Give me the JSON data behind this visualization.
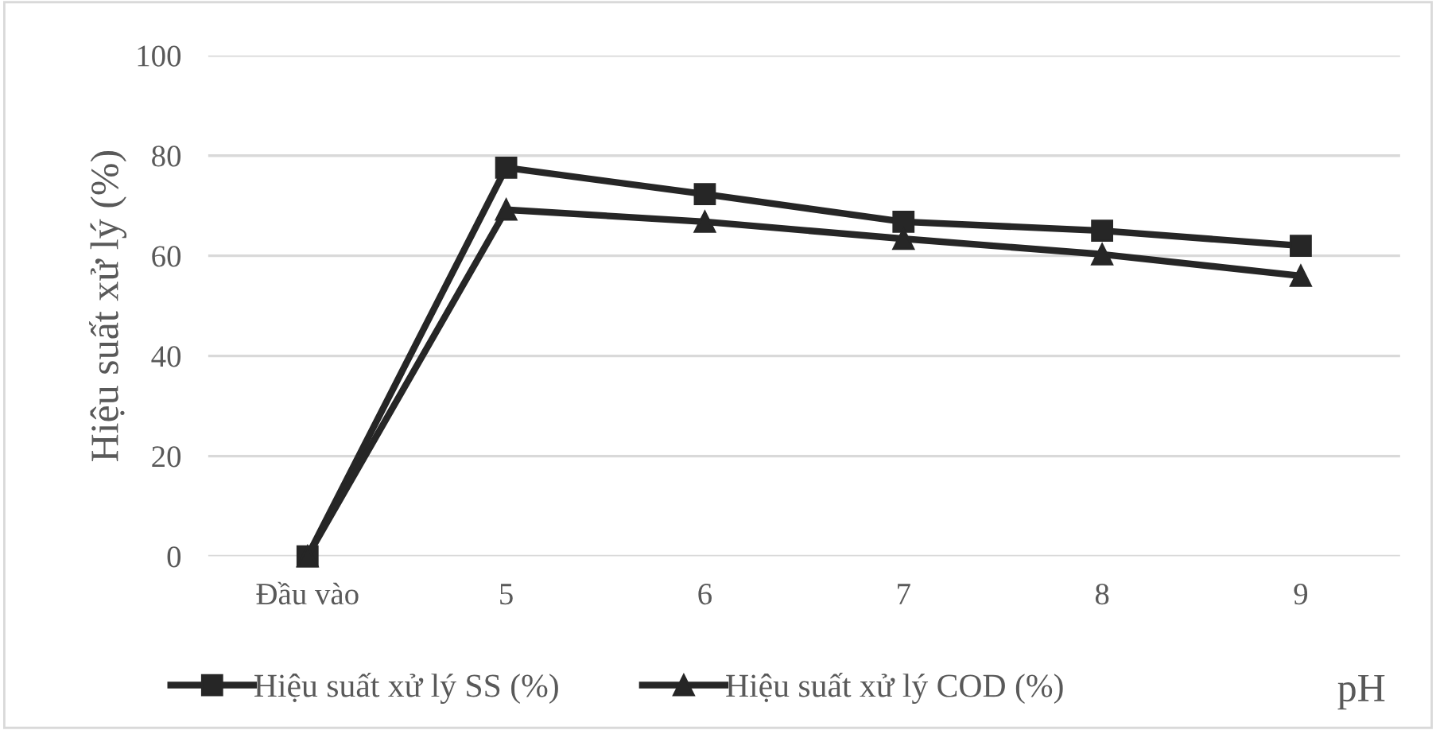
{
  "chart_data": {
    "type": "line",
    "ylabel": "Hiệu suất xử lý (%)",
    "xlabel": "pH",
    "categories": [
      "Đầu vào",
      "5",
      "6",
      "7",
      "8",
      "9"
    ],
    "series": [
      {
        "name": "Hiệu suất xử lý SS (%)",
        "color": "#262626",
        "marker": "square",
        "values": [
          0,
          77.6,
          72.3,
          66.8,
          65,
          62
        ]
      },
      {
        "name": "Hiệu suất xử lý COD (%)",
        "color": "#262626",
        "marker": "triangle",
        "values": [
          0,
          69.2,
          66.8,
          63.4,
          60.3,
          56
        ]
      }
    ],
    "ylim": [
      0,
      100
    ],
    "yticks": [
      0,
      20,
      40,
      60,
      80,
      100
    ],
    "grid": "y",
    "legend": "bottom",
    "line_style": "solid"
  }
}
